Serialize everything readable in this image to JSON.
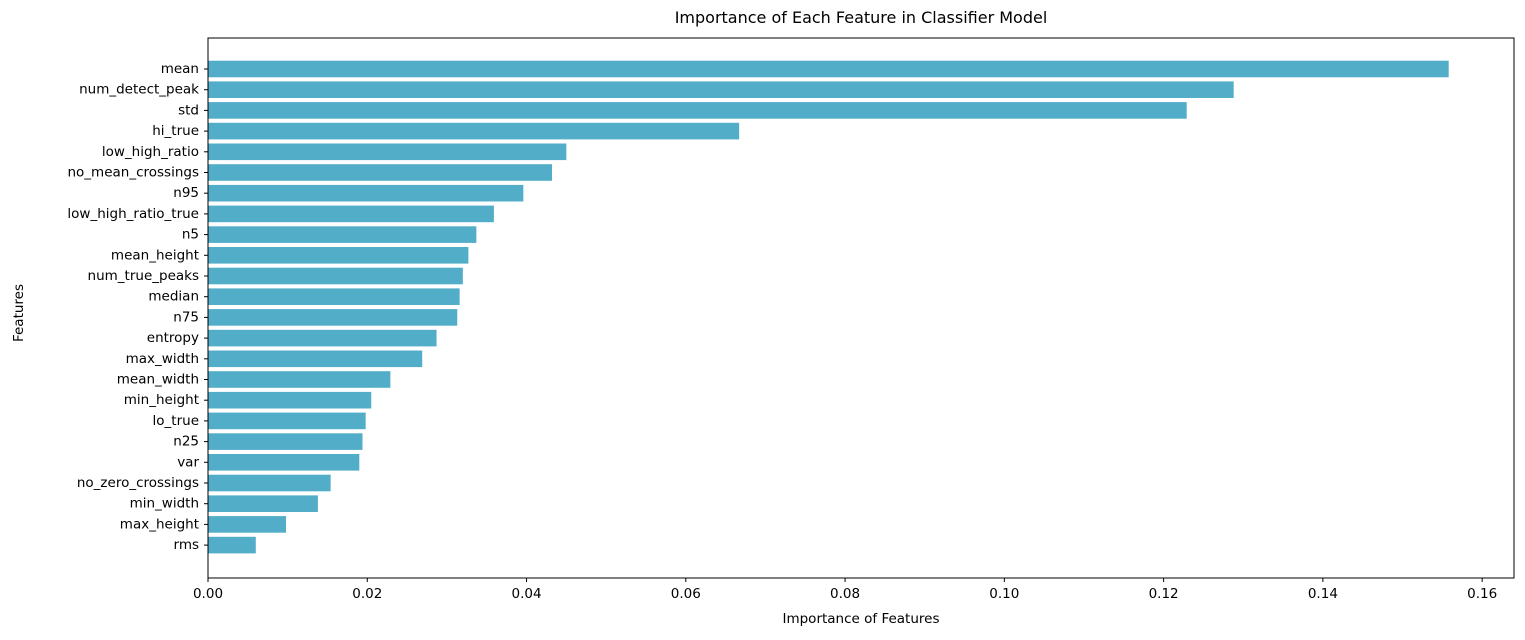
{
  "chart_data": {
    "type": "bar",
    "orientation": "horizontal",
    "title": "Importance of Each Feature in Classifier Model",
    "xlabel": "Importance of Features",
    "ylabel": "Features",
    "categories": [
      "mean",
      "num_detect_peak",
      "std",
      "hi_true",
      "low_high_ratio",
      "no_mean_crossings",
      "n95",
      "low_high_ratio_true",
      "n5",
      "mean_height",
      "num_true_peaks",
      "median",
      "n75",
      "entropy",
      "max_width",
      "mean_width",
      "min_height",
      "lo_true",
      "n25",
      "var",
      "no_zero_crossings",
      "min_width",
      "max_height",
      "rms"
    ],
    "values": [
      0.1558,
      0.1288,
      0.1229,
      0.0667,
      0.045,
      0.0432,
      0.0396,
      0.0359,
      0.0337,
      0.0327,
      0.032,
      0.0316,
      0.0313,
      0.0287,
      0.0269,
      0.0229,
      0.0205,
      0.0198,
      0.0194,
      0.019,
      0.0154,
      0.0138,
      0.0098,
      0.006
    ],
    "xlim": [
      0,
      0.164
    ],
    "xticks": [
      "0.00",
      "0.02",
      "0.04",
      "0.06",
      "0.08",
      "0.10",
      "0.12",
      "0.14",
      "0.16"
    ],
    "grid": false,
    "bar_color": "#52adc8"
  }
}
